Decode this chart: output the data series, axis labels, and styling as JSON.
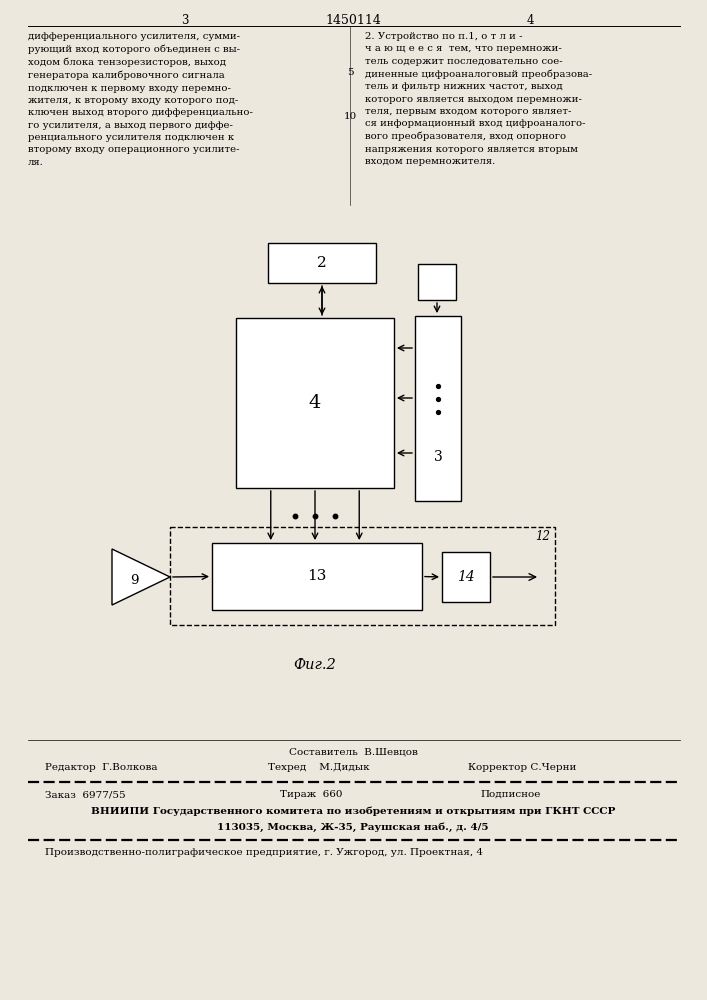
{
  "bg_color": "#ede8de",
  "page_width": 7.07,
  "page_height": 10.0,
  "header_number": "1450114",
  "page_left": "3",
  "page_right": "4",
  "text_left": "дифференциального усилителя, сумми-\nрующий вход которого объединен с вы-\nходом блока тензорезисторов, выход\nгенератора калибровочного сигнала\nподключен к первому входу перемно-\nжителя, к второму входу которого под-\nключен выход второго дифференциально-\nго усилителя, а выход первого диффе-\nренциального усилителя подключен к\nвторому входу операционного усилите-\nля.",
  "text_right": "2. Устройство по п.1, о т л и -\nч а ю щ е е с я  тем, что перемножи-\nтель содержит последовательно сое-\nдиненные цифроаналоговый преобразова-\nтель и фильтр нижних частот, выход\nкоторого является выходом перемножи-\nтеля, первым входом которого являет-\nся информационный вход цифроаналого-\nвого преобразователя, вход опорного\nнапряжения которого является вторым\nвходом перемножителя.",
  "line_number_5": "5",
  "line_number_10": "10",
  "fig_label": "Фиг.2",
  "footer_composer": "Составитель  В.Шевцов",
  "footer_editor": "Редактор  Г.Волкова",
  "footer_techred": "Техред    М.Дидык",
  "footer_corrector": "Корректор С.Черни",
  "footer_order": "Заказ  6977/55",
  "footer_circulation": "Тираж  660",
  "footer_subscription": "Подписное",
  "footer_vniipи": "ВНИИПИ Государственного комитета по изобретениям и открытиям при ГКНТ СССР",
  "footer_address": "113035, Москва, Ж-35, Раушская наб., д. 4/5",
  "footer_production": "Производственно-полиграфическое предприятие, г. Ужгород, ул. Проектная, 4"
}
